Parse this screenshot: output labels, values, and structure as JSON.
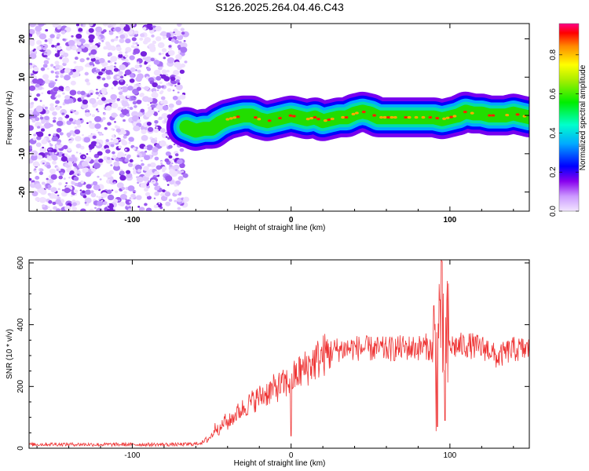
{
  "title": "S126.2025.264.04.46.C43",
  "chart_data": [
    {
      "type": "heatmap",
      "xlabel": "Height of straight line (km)",
      "ylabel": "Frequency (Hz)",
      "xlim": [
        -165,
        150
      ],
      "ylim": [
        -25,
        24
      ],
      "x_ticks": [
        -100,
        0,
        100
      ],
      "y_ticks": [
        -20,
        -10,
        0,
        10,
        20
      ],
      "noise_region_x": [
        -165,
        -66
      ],
      "ridge": {
        "x": [
          -66,
          -60,
          -55,
          -50,
          -45,
          -40,
          -35,
          -30,
          -25,
          -20,
          -15,
          -10,
          -5,
          0,
          5,
          10,
          15,
          20,
          25,
          30,
          35,
          40,
          45,
          50,
          55,
          60,
          65,
          70,
          75,
          80,
          85,
          90,
          95,
          100,
          105,
          110,
          115,
          120,
          125,
          130,
          135,
          140,
          145,
          150
        ],
        "freq": [
          -3.0,
          -4.0,
          -3.5,
          -3.5,
          -2.0,
          -1.0,
          -0.5,
          0.0,
          0.0,
          -1.0,
          -1.5,
          -1.0,
          -0.5,
          0.0,
          -0.5,
          -1.0,
          -0.5,
          -1.5,
          -1.0,
          -0.5,
          -0.5,
          0.5,
          1.0,
          0.5,
          -0.5,
          -0.5,
          -0.5,
          -0.5,
          -0.5,
          -0.5,
          -0.5,
          -0.5,
          -1.0,
          -0.5,
          0.0,
          1.0,
          0.5,
          0.5,
          0.0,
          0.0,
          0.0,
          0.5,
          0.0,
          -0.5
        ]
      },
      "colorbar": {
        "label": "Normalized spectral amplitude",
        "ticks": [
          0.0,
          0.2,
          0.4,
          0.6,
          0.8
        ],
        "range": [
          0,
          0.96
        ]
      }
    },
    {
      "type": "line",
      "xlabel": "Height of straight line (km)",
      "ylabel": "SNR (10 * v/v)",
      "xlim": [
        -165,
        150
      ],
      "ylim": [
        0,
        610
      ],
      "x_ticks": [
        -100,
        0,
        100
      ],
      "y_ticks": [
        0,
        200,
        400,
        600
      ],
      "line_color": "#ee3333",
      "series": [
        {
          "x": [
            -165,
            -150,
            -120,
            -100,
            -80,
            -70,
            -60,
            -55,
            -50,
            -47,
            -45,
            -42,
            -40,
            -35,
            -30,
            -25,
            -20,
            -15,
            -10,
            -5,
            0,
            5,
            10,
            15,
            20,
            25,
            30,
            40,
            50,
            60,
            70,
            80,
            85,
            88,
            90,
            92,
            94,
            96,
            98,
            100,
            105,
            110,
            115,
            120,
            125,
            128,
            130,
            132,
            135,
            140,
            145,
            150
          ],
          "y": [
            12,
            13,
            12,
            12,
            12,
            12,
            14,
            20,
            40,
            75,
            55,
            90,
            80,
            110,
            130,
            150,
            165,
            180,
            195,
            205,
            220,
            245,
            262,
            282,
            300,
            315,
            320,
            325,
            322,
            320,
            325,
            325,
            330,
            320,
            330,
            250,
            500,
            260,
            330,
            330,
            330,
            335,
            330,
            325,
            320,
            300,
            290,
            300,
            310,
            320,
            320,
            320
          ]
        }
      ]
    }
  ]
}
